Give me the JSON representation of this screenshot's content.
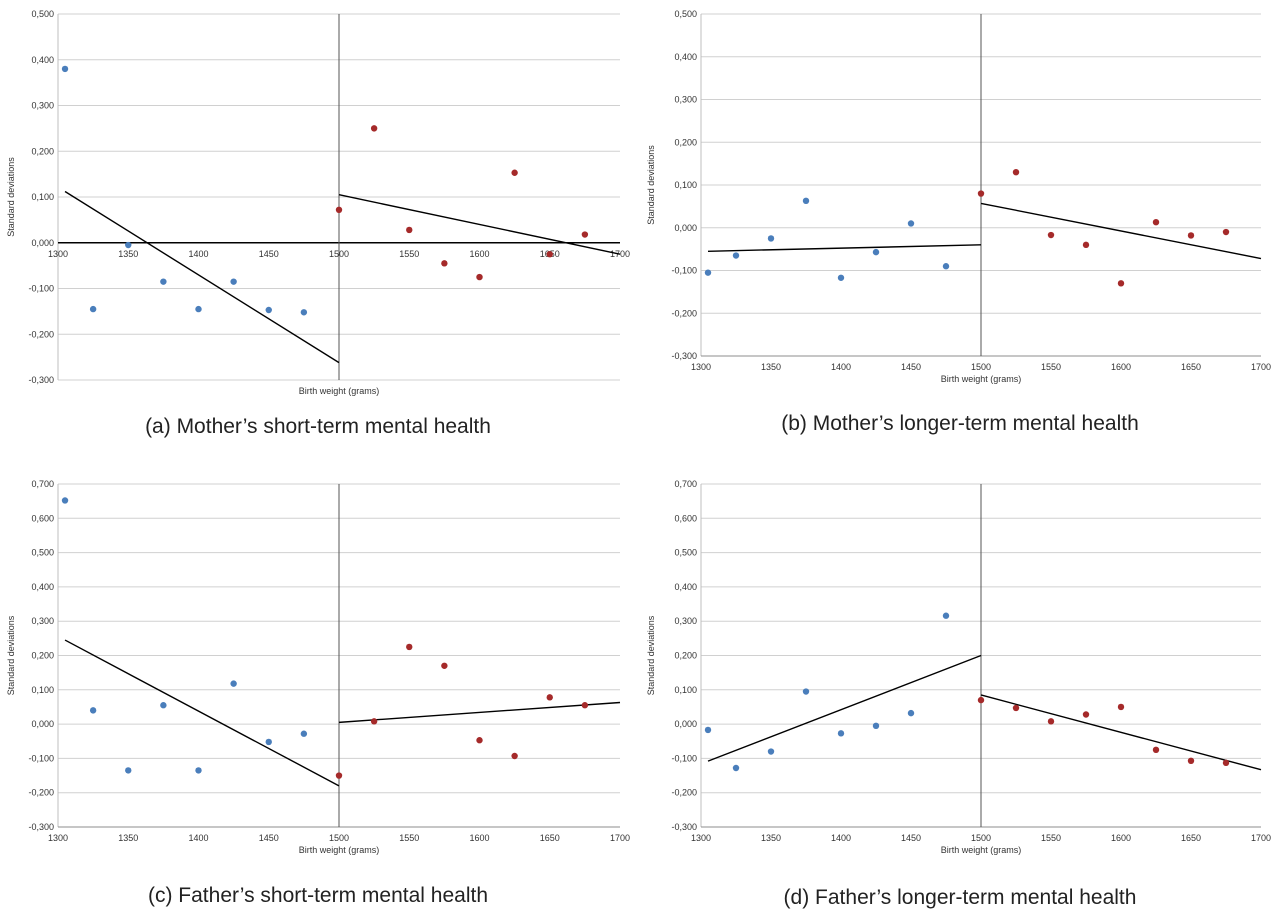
{
  "colors": {
    "below_cutoff": "#4a7ebb",
    "above_cutoff": "#a52a2a",
    "fit_line": "#000000",
    "gridline": "#d0d0d0",
    "cutoff_line": "#555555"
  },
  "chart_data": [
    {
      "id": "a",
      "type": "scatter",
      "caption": "(a) Mother’s short-term mental health",
      "xlabel": "Birth weight (grams)",
      "ylabel": "Standard deviations",
      "xlim": [
        1300,
        1700
      ],
      "ylim": [
        -0.3,
        0.5
      ],
      "ystep": 0.1,
      "x_ticks": [
        "1300",
        "1350",
        "1400",
        "1450",
        "1500",
        "1550",
        "1600",
        "1650",
        "1700"
      ],
      "y_ticks": [
        "-0,300",
        "-0,200",
        "-0,100",
        "0,000",
        "0,100",
        "0,200",
        "0,300",
        "0,400",
        "0,500"
      ],
      "x_axis_at_zero": true,
      "grid": true,
      "cutoff": 1500,
      "series": [
        {
          "group": "below",
          "x": [
            1305,
            1325,
            1350,
            1375,
            1400,
            1425,
            1450,
            1475
          ],
          "y": [
            0.38,
            -0.145,
            -0.005,
            -0.085,
            -0.145,
            -0.085,
            -0.147,
            -0.152
          ]
        },
        {
          "group": "above",
          "x": [
            1500,
            1525,
            1550,
            1575,
            1600,
            1625,
            1650,
            1675
          ],
          "y": [
            0.072,
            0.25,
            0.028,
            -0.045,
            -0.075,
            0.153,
            -0.025,
            0.018
          ]
        }
      ],
      "fit_lines": [
        {
          "x": [
            1305,
            1500
          ],
          "y": [
            0.112,
            -0.262
          ]
        },
        {
          "x": [
            1500,
            1700
          ],
          "y": [
            0.105,
            -0.025
          ]
        }
      ]
    },
    {
      "id": "b",
      "type": "scatter",
      "caption": "(b) Mother’s longer-term mental health",
      "xlabel": "Birth weight (grams)",
      "ylabel": "Standard deviations",
      "xlim": [
        1300,
        1700
      ],
      "ylim": [
        -0.3,
        0.5
      ],
      "ystep": 0.1,
      "x_ticks": [
        "1300",
        "1350",
        "1400",
        "1450",
        "1500",
        "1550",
        "1600",
        "1650",
        "1700"
      ],
      "y_ticks": [
        "-0,300",
        "-0,200",
        "-0,100",
        "0,000",
        "0,100",
        "0,200",
        "0,300",
        "0,400",
        "0,500"
      ],
      "x_axis_at_zero": false,
      "grid": true,
      "cutoff": 1500,
      "series": [
        {
          "group": "below",
          "x": [
            1305,
            1325,
            1350,
            1375,
            1400,
            1425,
            1450,
            1475
          ],
          "y": [
            -0.105,
            -0.065,
            -0.025,
            0.063,
            -0.117,
            -0.057,
            0.01,
            -0.09
          ]
        },
        {
          "group": "above",
          "x": [
            1500,
            1525,
            1550,
            1575,
            1600,
            1625,
            1650,
            1675
          ],
          "y": [
            0.08,
            0.13,
            -0.017,
            -0.04,
            -0.13,
            0.013,
            -0.018,
            -0.01
          ]
        }
      ],
      "fit_lines": [
        {
          "x": [
            1305,
            1500
          ],
          "y": [
            -0.055,
            -0.04
          ]
        },
        {
          "x": [
            1500,
            1700
          ],
          "y": [
            0.057,
            -0.072
          ]
        }
      ]
    },
    {
      "id": "c",
      "type": "scatter",
      "caption": "(c) Father’s short-term mental health",
      "xlabel": "Birth weight (grams)",
      "ylabel": "Standard deviations",
      "xlim": [
        1300,
        1700
      ],
      "ylim": [
        -0.3,
        0.7
      ],
      "ystep": 0.1,
      "x_ticks": [
        "1300",
        "1350",
        "1400",
        "1450",
        "1500",
        "1550",
        "1600",
        "1650",
        "1700"
      ],
      "y_ticks": [
        "-0,300",
        "-0,200",
        "-0,100",
        "0,000",
        "0,100",
        "0,200",
        "0,300",
        "0,400",
        "0,500",
        "0,600",
        "0,700"
      ],
      "x_axis_at_zero": false,
      "grid": true,
      "cutoff": 1500,
      "series": [
        {
          "group": "below",
          "x": [
            1305,
            1325,
            1350,
            1375,
            1400,
            1425,
            1450,
            1475
          ],
          "y": [
            0.652,
            0.04,
            -0.135,
            0.055,
            -0.135,
            0.118,
            -0.052,
            -0.028
          ]
        },
        {
          "group": "above",
          "x": [
            1500,
            1525,
            1550,
            1575,
            1600,
            1625,
            1650,
            1675
          ],
          "y": [
            -0.15,
            0.008,
            0.225,
            0.17,
            -0.047,
            -0.093,
            0.078,
            0.055
          ]
        }
      ],
      "fit_lines": [
        {
          "x": [
            1305,
            1500
          ],
          "y": [
            0.245,
            -0.18
          ]
        },
        {
          "x": [
            1500,
            1700
          ],
          "y": [
            0.005,
            0.063
          ]
        }
      ]
    },
    {
      "id": "d",
      "type": "scatter",
      "caption": "(d) Father’s longer-term mental health",
      "xlabel": "Birth weight (grams)",
      "ylabel": "Standard deviations",
      "xlim": [
        1300,
        1700
      ],
      "ylim": [
        -0.3,
        0.7
      ],
      "ystep": 0.1,
      "x_ticks": [
        "1300",
        "1350",
        "1400",
        "1450",
        "1500",
        "1550",
        "1600",
        "1650",
        "1700"
      ],
      "y_ticks": [
        "-0,300",
        "-0,200",
        "-0,100",
        "0,000",
        "0,100",
        "0,200",
        "0,300",
        "0,400",
        "0,500",
        "0,600",
        "0,700"
      ],
      "x_axis_at_zero": false,
      "grid": true,
      "cutoff": 1500,
      "series": [
        {
          "group": "below",
          "x": [
            1305,
            1325,
            1350,
            1375,
            1400,
            1425,
            1450,
            1475
          ],
          "y": [
            -0.017,
            -0.128,
            -0.08,
            0.095,
            -0.027,
            -0.005,
            0.032,
            0.316
          ]
        },
        {
          "group": "above",
          "x": [
            1500,
            1525,
            1550,
            1575,
            1600,
            1625,
            1650,
            1675
          ],
          "y": [
            0.07,
            0.047,
            0.008,
            0.028,
            0.05,
            -0.075,
            -0.107,
            -0.113
          ]
        }
      ],
      "fit_lines": [
        {
          "x": [
            1305,
            1500
          ],
          "y": [
            -0.108,
            0.2
          ]
        },
        {
          "x": [
            1500,
            1700
          ],
          "y": [
            0.085,
            -0.133
          ]
        }
      ]
    }
  ]
}
